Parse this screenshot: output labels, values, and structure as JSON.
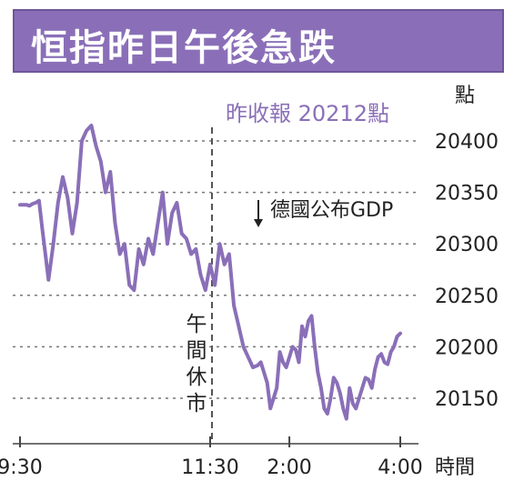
{
  "chart_data": {
    "type": "line",
    "title": "恒指昨日午後急跌",
    "ylabel": "點",
    "xlabel": "時間",
    "ylim": [
      20100,
      20420
    ],
    "y_ticks": [
      20400,
      20350,
      20300,
      20250,
      20200,
      20150
    ],
    "x_ticks": [
      "9:30",
      "11:30",
      "2:00",
      "4:00"
    ],
    "grid": true,
    "annotations": {
      "prev_close": "昨收報 20212點",
      "lunch_break": "午間休市",
      "gdp": "德國公布GDP"
    },
    "series": [
      {
        "color": "#8a6fb8",
        "x": [
          0,
          2,
          4,
          6,
          8,
          10,
          12,
          14,
          16,
          18,
          21,
          24,
          27,
          30,
          33,
          36,
          39,
          42,
          45,
          48,
          51,
          54,
          57,
          60,
          63,
          66,
          69,
          72,
          75,
          78,
          81,
          84,
          87,
          90,
          93,
          96,
          99,
          102,
          105,
          108,
          111,
          114,
          117,
          120,
          123,
          126,
          129,
          132,
          135,
          138,
          141,
          144,
          147,
          150,
          152,
          154,
          156,
          158,
          160,
          162,
          164,
          166,
          168,
          170,
          172,
          174,
          176,
          178,
          180,
          182,
          184,
          186,
          188,
          190,
          192,
          194,
          196,
          198,
          200,
          202,
          204,
          206,
          208,
          210,
          212,
          214,
          216,
          218,
          220,
          222,
          224,
          226,
          228,
          230,
          232,
          234,
          236,
          238,
          240
        ],
        "values": [
          20338,
          20338,
          20338,
          20337,
          20339,
          20340,
          20342,
          20315,
          20290,
          20265,
          20300,
          20340,
          20365,
          20345,
          20310,
          20340,
          20400,
          20410,
          20415,
          20395,
          20380,
          20350,
          20370,
          20320,
          20290,
          20300,
          20260,
          20255,
          20295,
          20280,
          20305,
          20290,
          20320,
          20350,
          20300,
          20330,
          20340,
          20310,
          20305,
          20290,
          20295,
          20270,
          20255,
          20280,
          20260,
          20300,
          20280,
          20290,
          20240,
          20220,
          20200,
          20190,
          20180,
          20182,
          20185,
          20175,
          20165,
          20140,
          20150,
          20160,
          20195,
          20185,
          20180,
          20190,
          20200,
          20197,
          20185,
          20220,
          20210,
          20225,
          20230,
          20200,
          20175,
          20160,
          20140,
          20135,
          20150,
          20170,
          20165,
          20155,
          20140,
          20130,
          20160,
          20145,
          20140,
          20150,
          20160,
          20170,
          20168,
          20160,
          20178,
          20190,
          20193,
          20185,
          20183,
          20195,
          20200,
          20210,
          20213
        ]
      }
    ]
  }
}
